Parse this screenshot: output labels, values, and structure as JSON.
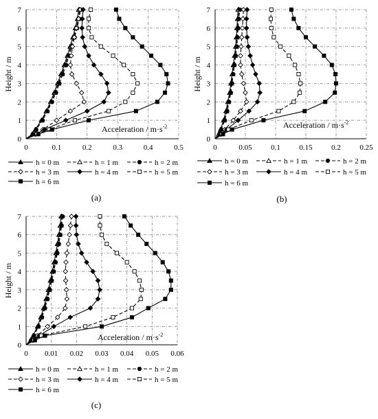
{
  "legend_labels": [
    "h = 0 m",
    "h = 1 m",
    "h = 2 m",
    "h = 3 m",
    "h = 4 m",
    "h = 5 m",
    "h = 6 m"
  ],
  "chart_data": [
    {
      "type": "line",
      "panel_label": "(a)",
      "xlabel": "Acceleration / m·s-2",
      "ylabel": "Height / m",
      "xlim": [
        0,
        0.5
      ],
      "ylim": [
        0,
        7
      ],
      "xticks": [
        0,
        0.1,
        0.2,
        0.3,
        0.4,
        0.5
      ],
      "xtick_labels": [
        "0",
        "0.1",
        "0.2",
        "0.3",
        "0.4",
        "0.5"
      ],
      "yticks": [
        0,
        1,
        2,
        3,
        4,
        5,
        6,
        7
      ],
      "ytick_labels": [
        "0",
        "1",
        "2",
        "3",
        "4",
        "5",
        "6",
        "7"
      ],
      "grid": true,
      "legend_position": "bottom",
      "y": [
        0,
        0.25,
        0.5,
        1,
        1.5,
        2,
        2.5,
        3,
        3.5,
        4,
        4.5,
        5,
        5.5,
        6,
        6.5,
        7
      ],
      "series": [
        {
          "name": "h = 0 m",
          "values": [
            0,
            0.02,
            0.03,
            0.05,
            0.066,
            0.08,
            0.092,
            0.103,
            0.114,
            0.125,
            0.135,
            0.144,
            0.153,
            0.161,
            0.168,
            0.172
          ]
        },
        {
          "name": "h = 1 m",
          "values": [
            0,
            0.021,
            0.032,
            0.052,
            0.068,
            0.082,
            0.095,
            0.106,
            0.117,
            0.128,
            0.138,
            0.147,
            0.156,
            0.164,
            0.171,
            0.175
          ]
        },
        {
          "name": "h = 2 m",
          "values": [
            0,
            0.022,
            0.033,
            0.054,
            0.07,
            0.085,
            0.098,
            0.109,
            0.12,
            0.131,
            0.141,
            0.15,
            0.159,
            0.167,
            0.174,
            0.178
          ]
        },
        {
          "name": "h = 3 m",
          "values": [
            0,
            0.03,
            0.055,
            0.1,
            0.145,
            0.19,
            0.182,
            0.165,
            0.15,
            0.145,
            0.148,
            0.152,
            0.158,
            0.165,
            0.172,
            0.177
          ]
        },
        {
          "name": "h = 4 m",
          "values": [
            0,
            0.032,
            0.06,
            0.13,
            0.2,
            0.255,
            0.27,
            0.265,
            0.245,
            0.222,
            0.205,
            0.192,
            0.185,
            0.183,
            0.184,
            0.187
          ]
        },
        {
          "name": "h = 5 m",
          "values": [
            0,
            0.035,
            0.075,
            0.16,
            0.27,
            0.325,
            0.35,
            0.365,
            0.35,
            0.32,
            0.285,
            0.245,
            0.215,
            0.205,
            0.205,
            0.212
          ]
        },
        {
          "name": "h = 6 m",
          "values": [
            0,
            0.04,
            0.085,
            0.205,
            0.36,
            0.43,
            0.455,
            0.465,
            0.46,
            0.44,
            0.41,
            0.38,
            0.35,
            0.325,
            0.305,
            0.295
          ]
        }
      ]
    },
    {
      "type": "line",
      "panel_label": "(b)",
      "xlabel": "Acceleration / m·s-2",
      "ylabel": "Height / m",
      "xlim": [
        0,
        0.25
      ],
      "ylim": [
        0,
        7
      ],
      "xticks": [
        0,
        0.05,
        0.1,
        0.15,
        0.2,
        0.25
      ],
      "xtick_labels": [
        "0",
        "0.05",
        "0.1",
        "0.15",
        "0.2",
        "0.25"
      ],
      "yticks": [
        0,
        1,
        2,
        3,
        4,
        5,
        6,
        7
      ],
      "ytick_labels": [
        "0",
        "1",
        "2",
        "3",
        "4",
        "5",
        "6",
        "7"
      ],
      "grid": true,
      "legend_position": "bottom",
      "y": [
        0,
        0.25,
        0.5,
        1,
        1.5,
        2,
        2.5,
        3,
        3.5,
        4,
        4.5,
        5,
        5.5,
        6,
        6.5,
        7
      ],
      "series": [
        {
          "name": "h = 0 m",
          "values": [
            0,
            0.006,
            0.009,
            0.014,
            0.018,
            0.021,
            0.024,
            0.026,
            0.028,
            0.03,
            0.032,
            0.034,
            0.035,
            0.036,
            0.037,
            0.038
          ]
        },
        {
          "name": "h = 1 m",
          "values": [
            0,
            0.006,
            0.009,
            0.015,
            0.019,
            0.022,
            0.025,
            0.027,
            0.029,
            0.031,
            0.033,
            0.035,
            0.036,
            0.037,
            0.038,
            0.039
          ]
        },
        {
          "name": "h = 2 m",
          "values": [
            0,
            0.007,
            0.01,
            0.016,
            0.02,
            0.023,
            0.026,
            0.028,
            0.03,
            0.032,
            0.034,
            0.036,
            0.037,
            0.038,
            0.039,
            0.041
          ]
        },
        {
          "name": "h = 3 m",
          "values": [
            0,
            0.009,
            0.016,
            0.03,
            0.042,
            0.052,
            0.05,
            0.047,
            0.044,
            0.042,
            0.042,
            0.043,
            0.044,
            0.045,
            0.046,
            0.047
          ]
        },
        {
          "name": "h = 4 m",
          "values": [
            0,
            0.01,
            0.019,
            0.038,
            0.056,
            0.07,
            0.074,
            0.073,
            0.067,
            0.062,
            0.058,
            0.055,
            0.053,
            0.052,
            0.052,
            0.053
          ]
        },
        {
          "name": "h = 5 m",
          "values": [
            0,
            0.011,
            0.022,
            0.06,
            0.105,
            0.13,
            0.14,
            0.141,
            0.138,
            0.132,
            0.122,
            0.108,
            0.097,
            0.093,
            0.092,
            0.093
          ]
        },
        {
          "name": "h = 6 m",
          "values": [
            0,
            0.013,
            0.028,
            0.08,
            0.148,
            0.182,
            0.198,
            0.2,
            0.199,
            0.193,
            0.18,
            0.165,
            0.15,
            0.138,
            0.13,
            0.126
          ]
        }
      ]
    },
    {
      "type": "line",
      "panel_label": "(c)",
      "xlabel": "Acceleration / m·s-2",
      "ylabel": "Height / m",
      "xlim": [
        0,
        0.06
      ],
      "ylim": [
        0,
        7
      ],
      "xticks": [
        0,
        0.01,
        0.02,
        0.03,
        0.04,
        0.05,
        0.06
      ],
      "xtick_labels": [
        "0",
        "0.01",
        "0.02",
        "0.03",
        "0.04",
        "0.05",
        "0.06"
      ],
      "yticks": [
        0,
        1,
        2,
        3,
        4,
        5,
        6,
        7
      ],
      "ytick_labels": [
        "0",
        "1",
        "2",
        "3",
        "4",
        "5",
        "6",
        "7"
      ],
      "grid": true,
      "legend_position": "bottom",
      "y": [
        0,
        0.25,
        0.5,
        1,
        1.5,
        2,
        2.5,
        3,
        3.5,
        4,
        4.5,
        5,
        5.5,
        6,
        6.5,
        7
      ],
      "series": [
        {
          "name": "h = 0 m",
          "values": [
            0,
            0.0018,
            0.0028,
            0.0045,
            0.0058,
            0.0069,
            0.0079,
            0.0088,
            0.0096,
            0.0104,
            0.0111,
            0.0118,
            0.0124,
            0.013,
            0.0135,
            0.0139
          ]
        },
        {
          "name": "h = 1 m",
          "values": [
            0,
            0.0019,
            0.003,
            0.0047,
            0.006,
            0.0072,
            0.0082,
            0.0091,
            0.0099,
            0.0107,
            0.0114,
            0.0121,
            0.0127,
            0.0133,
            0.0138,
            0.0142
          ]
        },
        {
          "name": "h = 2 m",
          "values": [
            0,
            0.002,
            0.0031,
            0.0049,
            0.0063,
            0.0075,
            0.0085,
            0.0094,
            0.0102,
            0.011,
            0.0117,
            0.0124,
            0.013,
            0.0136,
            0.0141,
            0.0145
          ]
        },
        {
          "name": "h = 3 m",
          "values": [
            0,
            0.0025,
            0.0045,
            0.0085,
            0.0125,
            0.0155,
            0.0162,
            0.016,
            0.0157,
            0.0156,
            0.0158,
            0.0162,
            0.0167,
            0.0172,
            0.0176,
            0.018
          ]
        },
        {
          "name": "h = 4 m",
          "values": [
            0,
            0.0028,
            0.0052,
            0.011,
            0.0175,
            0.0255,
            0.0285,
            0.0292,
            0.0285,
            0.0265,
            0.024,
            0.022,
            0.0207,
            0.02,
            0.0198,
            0.0198
          ]
        },
        {
          "name": "h = 5 m",
          "values": [
            0,
            0.003,
            0.006,
            0.0235,
            0.0345,
            0.042,
            0.0455,
            0.0458,
            0.045,
            0.043,
            0.04,
            0.036,
            0.032,
            0.03,
            0.0293,
            0.0293
          ]
        },
        {
          "name": "h = 6 m",
          "values": [
            0,
            0.0035,
            0.0075,
            0.03,
            0.042,
            0.0485,
            0.0552,
            0.0575,
            0.0575,
            0.0565,
            0.0542,
            0.0512,
            0.0478,
            0.0445,
            0.0415,
            0.039
          ]
        }
      ]
    }
  ]
}
